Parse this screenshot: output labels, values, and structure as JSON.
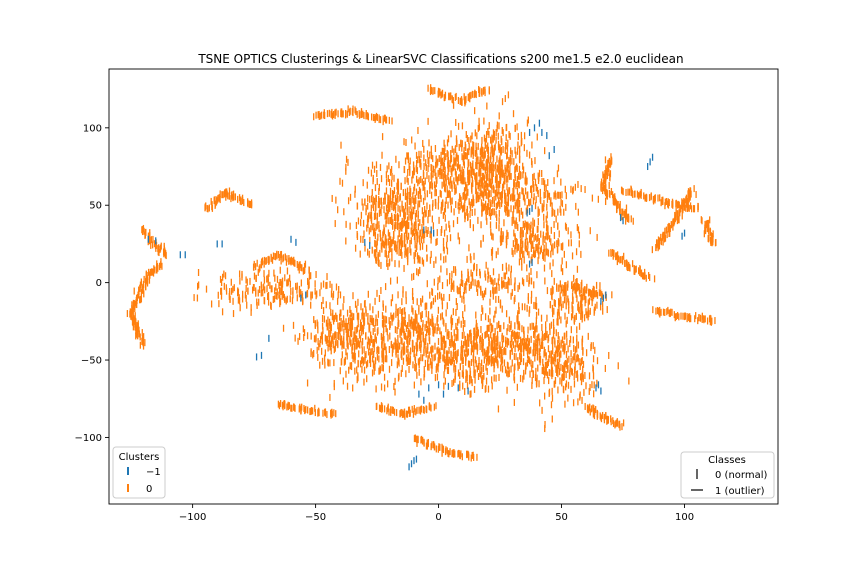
{
  "chart_data": {
    "type": "scatter",
    "title": "TSNE OPTICS Clusterings & LinearSVC Classifications s200 me1.5 e2.0 euclidean",
    "xlabel": "",
    "ylabel": "",
    "xlim": [
      -134,
      138
    ],
    "ylim": [
      -143,
      138
    ],
    "xticks": [
      -100,
      -50,
      0,
      50,
      100
    ],
    "yticks": [
      -100,
      -50,
      0,
      50,
      100
    ],
    "xtick_labels": [
      "−100",
      "−50",
      "0",
      "50",
      "100"
    ],
    "ytick_labels": [
      "−100",
      "−50",
      "0",
      "50",
      "100"
    ],
    "grid": false,
    "colors": {
      "cluster_-1": "#1f77b4",
      "cluster_0": "#ff7f0e"
    },
    "legends": [
      {
        "title": "Clusters",
        "placement": "lower-left",
        "entries": [
          {
            "label": "−1",
            "color": "#1f77b4"
          },
          {
            "label": "0",
            "color": "#ff7f0e"
          }
        ]
      },
      {
        "title": "Classes",
        "placement": "lower-right",
        "entries": [
          {
            "label": "0 (normal)",
            "marker": "vertical-line"
          },
          {
            "label": "1 (outlier)",
            "marker": "horizontal-line"
          }
        ]
      }
    ],
    "series": [
      {
        "name": "0",
        "color": "#ff7f0e",
        "marker": "vertical-line",
        "regions": [
          {
            "cx": -17,
            "cy": 48,
            "sx": 11,
            "sy": 14
          },
          {
            "cx": 6,
            "cy": 73,
            "sx": 11,
            "sy": 11
          },
          {
            "cx": 22,
            "cy": 78,
            "sx": 8,
            "sy": 15
          },
          {
            "cx": 27,
            "cy": 55,
            "sx": 14,
            "sy": 9
          },
          {
            "cx": 38,
            "cy": 28,
            "sx": 10,
            "sy": 9
          },
          {
            "cx": -12,
            "cy": 25,
            "sx": 9,
            "sy": 8
          },
          {
            "cx": 18,
            "cy": 0,
            "sx": 11,
            "sy": 5
          },
          {
            "cx": -28,
            "cy": -40,
            "sx": 11,
            "sy": 13
          },
          {
            "cx": -8,
            "cy": -32,
            "sx": 8,
            "sy": 14
          },
          {
            "cx": 12,
            "cy": -48,
            "sx": 10,
            "sy": 12
          },
          {
            "cx": 32,
            "cy": -38,
            "sx": 10,
            "sy": 13
          },
          {
            "cx": 50,
            "cy": -52,
            "sx": 8,
            "sy": 12
          },
          {
            "cx": 57,
            "cy": -12,
            "sx": 6,
            "sy": 8
          },
          {
            "cx": -70,
            "cy": -5,
            "sx": 13,
            "sy": 6
          },
          {
            "cx": -40,
            "cy": -30,
            "sx": 7,
            "sy": 8
          }
        ],
        "arcs": [
          [
            [
              -120,
              35
            ],
            [
              -116,
              25
            ],
            [
              -110,
              18
            ]
          ],
          [
            [
              -120,
              -40
            ],
            [
              -125,
              -20
            ],
            [
              -118,
              5
            ],
            [
              -112,
              12
            ]
          ],
          [
            [
              70,
              80
            ],
            [
              67,
              62
            ],
            [
              75,
              45
            ],
            [
              78,
              40
            ]
          ],
          [
            [
              75,
              60
            ],
            [
              92,
              52
            ],
            [
              106,
              48
            ]
          ],
          [
            [
              103,
              60
            ],
            [
              94,
              35
            ],
            [
              88,
              22
            ]
          ],
          [
            [
              108,
              40
            ],
            [
              110,
              30
            ],
            [
              112,
              25
            ]
          ],
          [
            [
              20,
              125
            ],
            [
              9,
              117
            ],
            [
              -4,
              125
            ]
          ],
          [
            [
              -65,
              -78
            ],
            [
              -55,
              -82
            ],
            [
              -42,
              -85
            ]
          ],
          [
            [
              60,
              -80
            ],
            [
              68,
              -88
            ],
            [
              75,
              -93
            ]
          ],
          [
            [
              -75,
              10
            ],
            [
              -65,
              18
            ],
            [
              -53,
              8
            ]
          ],
          [
            [
              88,
              -18
            ],
            [
              100,
              -22
            ],
            [
              112,
              -25
            ]
          ],
          [
            [
              -76,
              50
            ],
            [
              -86,
              58
            ],
            [
              -95,
              48
            ]
          ],
          [
            [
              45,
              -5
            ],
            [
              55,
              -3
            ],
            [
              67,
              -8
            ]
          ],
          [
            [
              -20,
              105
            ],
            [
              -35,
              110
            ],
            [
              -50,
              108
            ]
          ],
          [
            [
              70,
              20
            ],
            [
              78,
              10
            ],
            [
              86,
              3
            ]
          ],
          [
            [
              -10,
              -100
            ],
            [
              5,
              -110
            ],
            [
              15,
              -112
            ]
          ],
          [
            [
              -2,
              -80
            ],
            [
              -15,
              -85
            ],
            [
              -25,
              -80
            ]
          ]
        ]
      },
      {
        "name": "−1",
        "color": "#1f77b4",
        "marker": "vertical-line",
        "points": [
          [
            -11,
            -117
          ],
          [
            -10,
            -115
          ],
          [
            -12,
            -119
          ],
          [
            -9,
            -114
          ],
          [
            -8,
            -72
          ],
          [
            -4,
            -68
          ],
          [
            0,
            -66
          ],
          [
            4,
            -67
          ],
          [
            8,
            -68
          ],
          [
            12,
            -70
          ],
          [
            2,
            -72
          ],
          [
            -6,
            -76
          ],
          [
            39,
            100
          ],
          [
            42,
            97
          ],
          [
            44,
            95
          ],
          [
            41,
            103
          ],
          [
            37,
            97
          ],
          [
            86,
            78
          ],
          [
            85,
            75
          ],
          [
            87,
            81
          ],
          [
            64,
            -68
          ],
          [
            66,
            -70
          ],
          [
            65,
            -66
          ],
          [
            67,
            -10
          ],
          [
            66,
            -12
          ],
          [
            68,
            -8
          ],
          [
            -3,
            34
          ],
          [
            -2,
            32
          ],
          [
            -6,
            34
          ],
          [
            37,
            46
          ],
          [
            38,
            48
          ],
          [
            36,
            45
          ],
          [
            74,
            42
          ],
          [
            75,
            40
          ],
          [
            99,
            30
          ],
          [
            100,
            32
          ],
          [
            -74,
            -48
          ],
          [
            -72,
            -47
          ],
          [
            -69,
            -36
          ],
          [
            -88,
            25
          ],
          [
            -90,
            25
          ],
          [
            -60,
            28
          ],
          [
            -58,
            26
          ],
          [
            -105,
            18
          ],
          [
            -103,
            18
          ],
          [
            -54,
            -8
          ],
          [
            -56,
            -10
          ],
          [
            -118,
            28
          ],
          [
            -115,
            27
          ],
          [
            -28,
            24
          ],
          [
            -30,
            26
          ],
          [
            37,
            12
          ],
          [
            38,
            13
          ],
          [
            45,
            82
          ],
          [
            47,
            86
          ]
        ]
      }
    ]
  }
}
